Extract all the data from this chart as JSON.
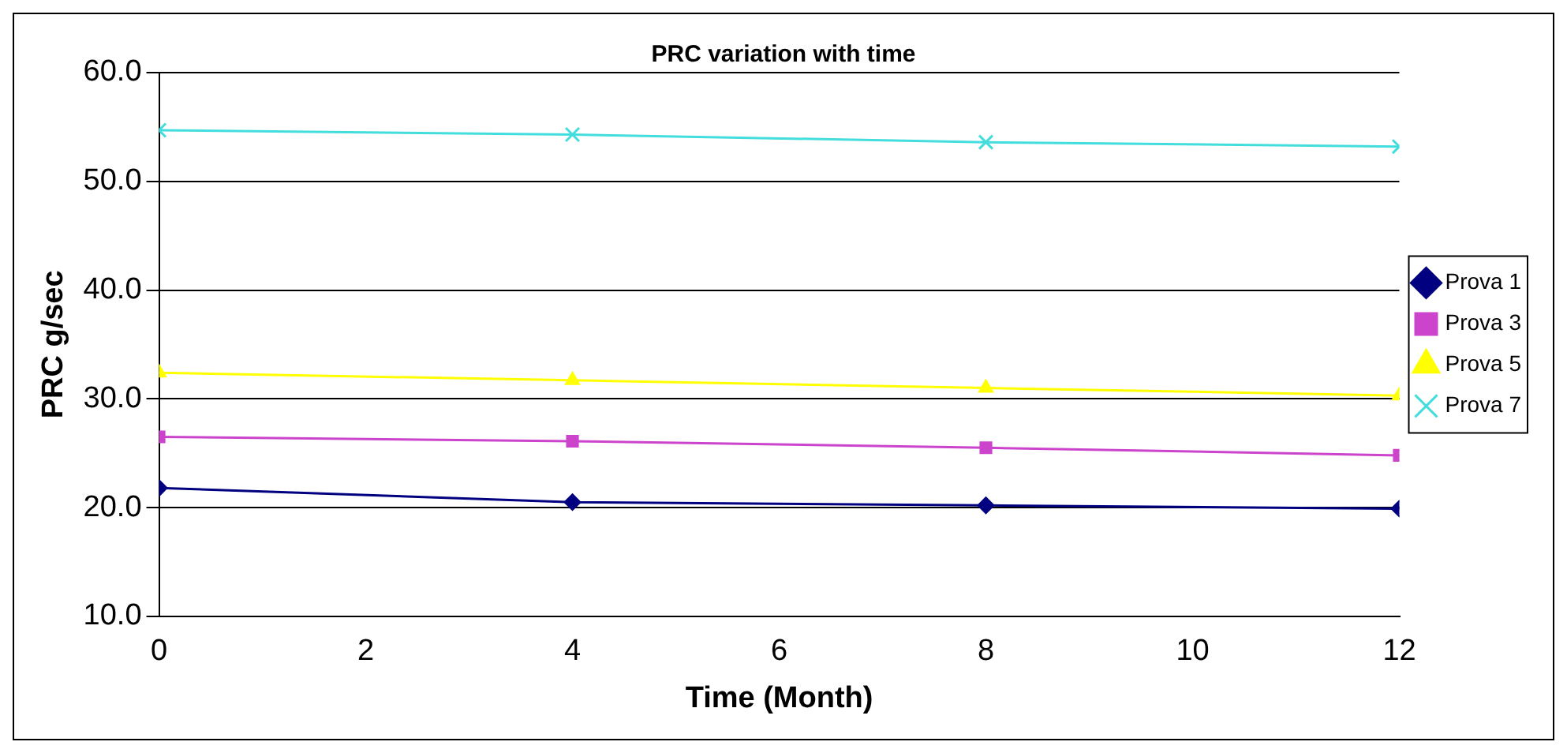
{
  "chart_data": {
    "type": "line",
    "title": "PRC variation with time",
    "xlabel": "Time (Month)",
    "ylabel": "PRC g/sec",
    "x": [
      0,
      4,
      8,
      12
    ],
    "xlim": [
      0,
      12
    ],
    "xticks": [
      0,
      2,
      4,
      6,
      8,
      10,
      12
    ],
    "ylim": [
      10,
      60
    ],
    "yticks": [
      {
        "value": 10,
        "label": "10.0"
      },
      {
        "value": 20,
        "label": "20.0"
      },
      {
        "value": 30,
        "label": "30.0"
      },
      {
        "value": 40,
        "label": "40.0"
      },
      {
        "value": 50,
        "label": "50.0"
      },
      {
        "value": 60,
        "label": "60.0"
      }
    ],
    "grid": "y",
    "legend": "right",
    "line_style": "solid",
    "series": [
      {
        "name": "Prova 1",
        "color": "#000080",
        "marker": "diamond",
        "values": [
          21.8,
          20.5,
          20.2,
          19.9
        ]
      },
      {
        "name": "Prova 3",
        "color": "#cc44cc",
        "marker": "square",
        "values": [
          26.5,
          26.1,
          25.5,
          24.8
        ]
      },
      {
        "name": "Prova 5",
        "color": "#ffff00",
        "marker": "triangle",
        "values": [
          32.4,
          31.7,
          31.0,
          30.3
        ]
      },
      {
        "name": "Prova 7",
        "color": "#44dddd",
        "marker": "cross",
        "values": [
          54.7,
          54.3,
          53.6,
          53.2
        ]
      }
    ]
  }
}
